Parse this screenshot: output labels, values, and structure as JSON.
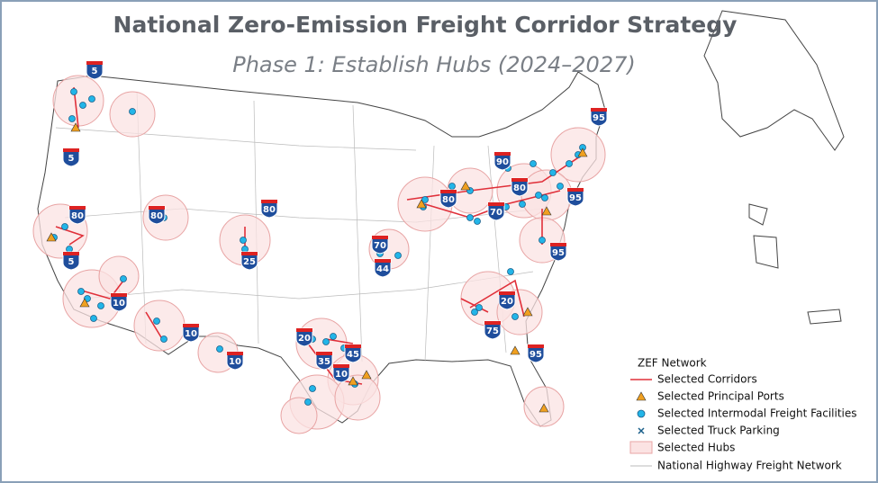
{
  "header": {
    "title": "National Zero-Emission Freight Corridor Strategy",
    "subtitle": "Phase 1: Establish Hubs (2024–2027)"
  },
  "shields": [
    "5",
    "95",
    "5",
    "90",
    "80",
    "80",
    "95",
    "80",
    "80",
    "80",
    "70",
    "70",
    "95",
    "5",
    "25",
    "44",
    "10",
    "20",
    "75",
    "10",
    "20",
    "45",
    "35",
    "10",
    "95",
    "10"
  ],
  "legend": {
    "title": "ZEF Network",
    "items": [
      "Selected Corridors",
      "Selected Principal Ports",
      "Selected Intermodal Freight Facilities",
      "Selected Truck Parking",
      "Selected Hubs",
      "National Highway Freight Network"
    ]
  }
}
